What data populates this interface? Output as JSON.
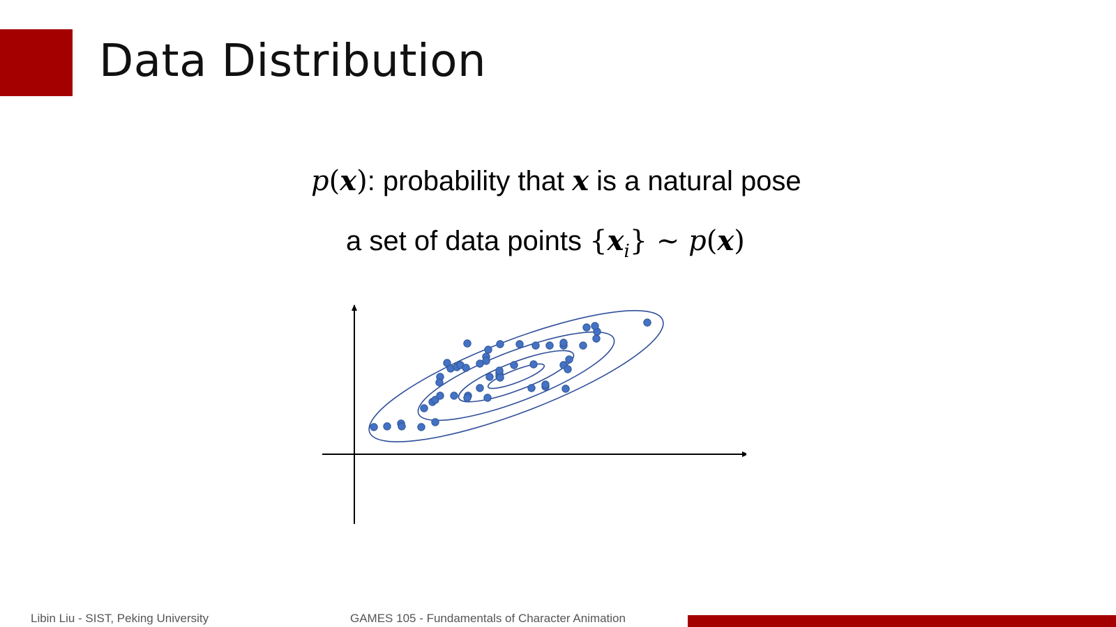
{
  "slide": {
    "title": "Data Distribution"
  },
  "formula1": {
    "p": "p",
    "open": "(",
    "x": "x",
    "close": ")",
    "text1": ": probability that ",
    "x2": "x",
    "text2": " is a natural pose"
  },
  "formula2": {
    "text": "a set of data points ",
    "lbrace": "{",
    "x": "x",
    "i": "i",
    "rbrace": "}",
    "tilde": " ~ ",
    "p": "p",
    "open": "(",
    "x2": "x",
    "close": ")"
  },
  "footer": {
    "left": "Libin Liu - SIST, Peking University",
    "center": "GAMES 105 - Fundamentals of Character Animation"
  },
  "colors": {
    "accent": "#a50000",
    "points": "#4472c4",
    "contours": "#2f4f9a"
  },
  "chart_data": {
    "type": "scatter",
    "title": "",
    "xlabel": "",
    "ylabel": "",
    "grid": false,
    "legend": "none",
    "contours": 4
  }
}
